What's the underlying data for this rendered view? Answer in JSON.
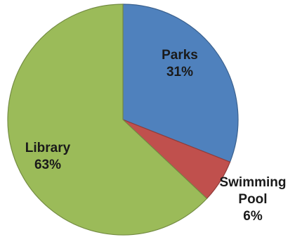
{
  "chart_data": {
    "type": "pie",
    "title": "",
    "slices": [
      {
        "label": "Parks",
        "percent_label": "31%",
        "value": 31,
        "color": "#4f81bd",
        "label_lines": [
          "Parks"
        ]
      },
      {
        "label": "Swimming Pool",
        "percent_label": "6%",
        "value": 6,
        "color": "#c0504d",
        "label_lines": [
          "Swimming",
          "Pool"
        ]
      },
      {
        "label": "Library",
        "percent_label": "63%",
        "value": 63,
        "color": "#9bbb59",
        "label_lines": [
          "Library"
        ]
      }
    ],
    "start_angle_deg": 0,
    "direction": "clockwise",
    "legend": "none",
    "border_color": "#6e8a3a"
  }
}
